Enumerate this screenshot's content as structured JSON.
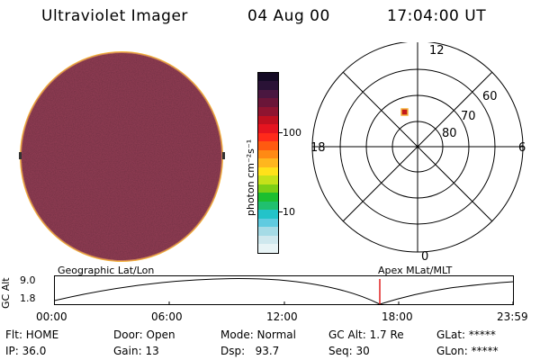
{
  "header": {
    "title": "Ultraviolet Imager",
    "date": "04 Aug 00",
    "time": "17:04:00 UT"
  },
  "colorbar": {
    "unit_label": "photon cm⁻²s⁻¹",
    "ticks": [
      "100",
      "10"
    ],
    "colors": [
      "#e8f4f6",
      "#cfe8ee",
      "#a5dbe6",
      "#5fcbe0",
      "#23c3c9",
      "#20c06f",
      "#1cbf2f",
      "#7ccf16",
      "#c5e11a",
      "#ffe11a",
      "#ffb61e",
      "#ff8a14",
      "#ff5a10",
      "#ff2a1a",
      "#e5141f",
      "#c0101f",
      "#8f1430",
      "#6a1538",
      "#4a1740",
      "#2a1236",
      "#140a24"
    ]
  },
  "polar_plot": {
    "mlt_labels": {
      "top": "12",
      "left": "18",
      "right": "6",
      "bottom": "0"
    },
    "lat_labels": [
      "60",
      "70",
      "80"
    ]
  },
  "imager_disk": {
    "fill_color": "#5a1a28",
    "edge_color": "#f3b23a"
  },
  "altitude_plot": {
    "ylabel": "GC Alt",
    "yticks": [
      "9.0",
      "1.8"
    ],
    "left_title": "Geographic Lat/Lon",
    "right_title": "Apex MLat/MLT",
    "xticks": [
      "00:00",
      "06:00",
      "12:00",
      "18:00",
      "23:59"
    ],
    "marker_color": "#e02020"
  },
  "footer": {
    "row1": {
      "flt": "Flt: HOME",
      "door": "Door: Open",
      "mode": "Mode: Normal",
      "gcalt": "GC Alt: 1.7 Re",
      "glat": "GLat: *****"
    },
    "row2": {
      "ip": "IP: 36.0",
      "gain": "Gain: 13",
      "dsp": "Dsp:   93.7",
      "seq": "Seq: 30",
      "glon": "GLon: *****"
    }
  }
}
